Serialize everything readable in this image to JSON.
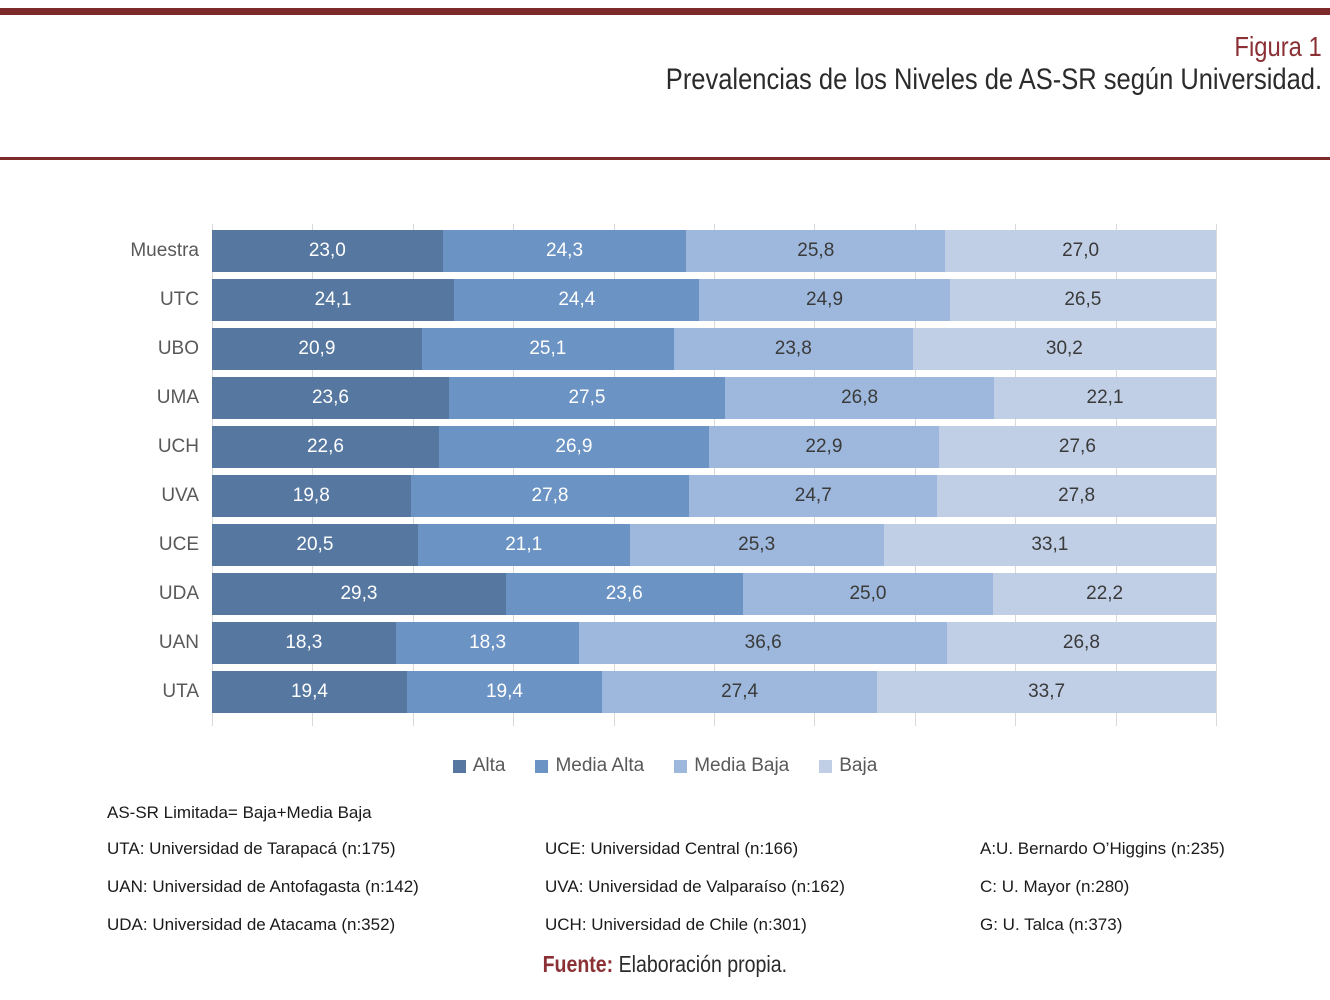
{
  "page": {
    "figure_label": "Figura 1",
    "title": "Prevalencias de los Niveles de AS-SR según Universidad.",
    "accent_color": "#7d2a2b",
    "source_label": "Fuente:",
    "source_text": "Elaboración propia."
  },
  "chart_data": {
    "type": "bar",
    "stacked": true,
    "percent_stacked": true,
    "orientation": "horizontal",
    "categories": [
      "Muestra",
      "UTC",
      "UBO",
      "UMA",
      "UCH",
      "UVA",
      "UCE",
      "UDA",
      "UAN",
      "UTA"
    ],
    "series": [
      {
        "name": "Alta",
        "color": "#5577a0",
        "label_color": "#ffffff",
        "values": [
          23.0,
          24.1,
          20.9,
          23.6,
          22.6,
          19.8,
          20.5,
          29.3,
          18.3,
          19.4
        ]
      },
      {
        "name": "Media Alta",
        "color": "#6b93c4",
        "label_color": "#ffffff",
        "values": [
          24.3,
          24.4,
          25.1,
          27.5,
          26.9,
          27.8,
          21.1,
          23.6,
          18.3,
          19.4
        ]
      },
      {
        "name": "Media Baja",
        "color": "#9db8dc",
        "label_color": "#3a3a3a",
        "values": [
          25.8,
          24.9,
          23.8,
          26.8,
          22.9,
          24.7,
          25.3,
          25.0,
          36.6,
          27.4
        ]
      },
      {
        "name": "Baja",
        "color": "#c0cfe5",
        "label_color": "#3a3a3a",
        "values": [
          27.0,
          26.5,
          30.2,
          22.1,
          27.6,
          27.8,
          33.1,
          22.2,
          26.8,
          33.7
        ]
      }
    ],
    "xlim": [
      0,
      100
    ],
    "gridline_step": 10,
    "gridline_color": "#d9d9d9",
    "grid": true,
    "legend_position": "bottom",
    "legend_labels": [
      "Alta",
      "Media Alta",
      "Media Baja",
      "Baja"
    ],
    "decimal_separator": ","
  },
  "footnotes": {
    "note": "AS-SR Limitada= Baja+Media Baja",
    "columns": [
      [
        "UTA: Universidad de Tarapacá (n:175)",
        "UAN: Universidad de Antofagasta (n:142)",
        "UDA: Universidad de Atacama (n:352)"
      ],
      [
        "UCE: Universidad Central (n:166)",
        "UVA: Universidad de Valparaíso (n:162)",
        "UCH: Universidad de Chile (n:301)"
      ],
      [
        "A:U. Bernardo O’Higgins (n:235)",
        "C: U. Mayor (n:280)",
        "G: U. Talca (n:373)"
      ]
    ]
  }
}
